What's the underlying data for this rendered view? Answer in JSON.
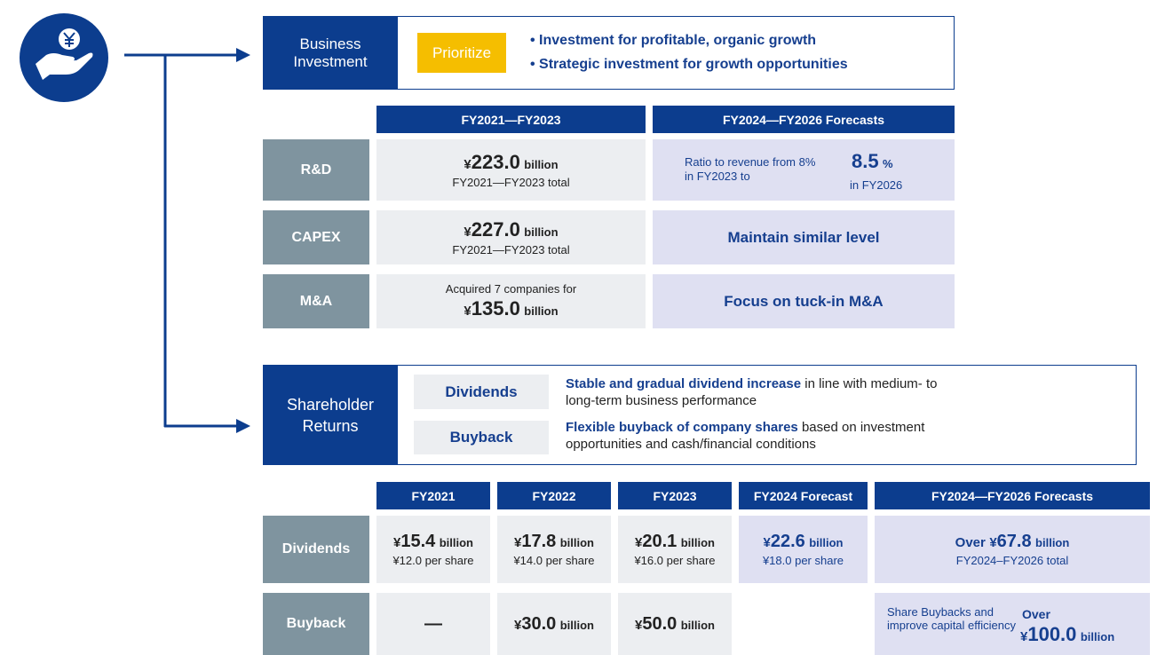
{
  "investment": {
    "label": "Business Investment",
    "tag": "Prioritize",
    "points": [
      "• Investment for profitable, organic growth",
      "• Strategic investment for growth opportunities"
    ]
  },
  "investment_table": {
    "headers": [
      "FY2021—FY2023",
      "FY2024—FY2026 Forecasts"
    ],
    "rows": [
      {
        "label": "R&D",
        "actual": {
          "currency": "¥",
          "amount": "223.0",
          "unit": "billion",
          "note": "FY2021—FY2023 total"
        },
        "forecast": {
          "text": "Ratio to revenue from 8% in FY2023 to",
          "amount": "8.5",
          "unit": "%",
          "note": "in FY2026"
        }
      },
      {
        "label": "CAPEX",
        "actual": {
          "currency": "¥",
          "amount": "227.0",
          "unit": "billion",
          "note": "FY2021—FY2023 total"
        },
        "forecast": {
          "text": "Maintain similar level"
        }
      },
      {
        "label": "M&A",
        "actual": {
          "pre": "Acquired 7 companies for",
          "currency": "¥",
          "amount": "135.0",
          "unit": "billion"
        },
        "forecast": {
          "text": "Focus on tuck-in M&A"
        }
      }
    ]
  },
  "returns": {
    "label": "Shareholder Returns",
    "items": [
      {
        "tag": "Dividends",
        "highlight": "Stable and gradual dividend increase",
        "text": "in line with medium- to long-term business performance"
      },
      {
        "tag": "Buyback",
        "highlight": "Flexible buyback of company shares",
        "text": "based on investment opportunities and cash/financial conditions"
      }
    ]
  },
  "returns_table": {
    "headers": [
      "FY2021",
      "FY2022",
      "FY2023",
      "FY2024 Forecast",
      "FY2024—FY2026 Forecasts"
    ],
    "rows": [
      {
        "label": "Dividends",
        "cells": [
          {
            "currency": "¥",
            "amount": "15.4",
            "unit": "billion",
            "note": "¥12.0 per share"
          },
          {
            "currency": "¥",
            "amount": "17.8",
            "unit": "billion",
            "note": "¥14.0 per share"
          },
          {
            "currency": "¥",
            "amount": "20.1",
            "unit": "billion",
            "note": "¥16.0 per share"
          },
          {
            "currency": "¥",
            "amount": "22.6",
            "unit": "billion",
            "note": "¥18.0 per share"
          }
        ],
        "forecast": {
          "pre": "Over",
          "currency": "¥",
          "amount": "67.8",
          "unit": "billion",
          "note": "FY2024–FY2026 total"
        }
      },
      {
        "label": "Buyback",
        "cells": [
          {
            "text": "—"
          },
          {
            "currency": "¥",
            "amount": "30.0",
            "unit": "billion"
          },
          {
            "currency": "¥",
            "amount": "50.0",
            "unit": "billion"
          }
        ],
        "forecast": {
          "text": "Share Buybacks and improve capital efficiency",
          "pre": "Over",
          "currency": "¥",
          "amount": "100.0",
          "unit": "billion"
        }
      }
    ]
  }
}
